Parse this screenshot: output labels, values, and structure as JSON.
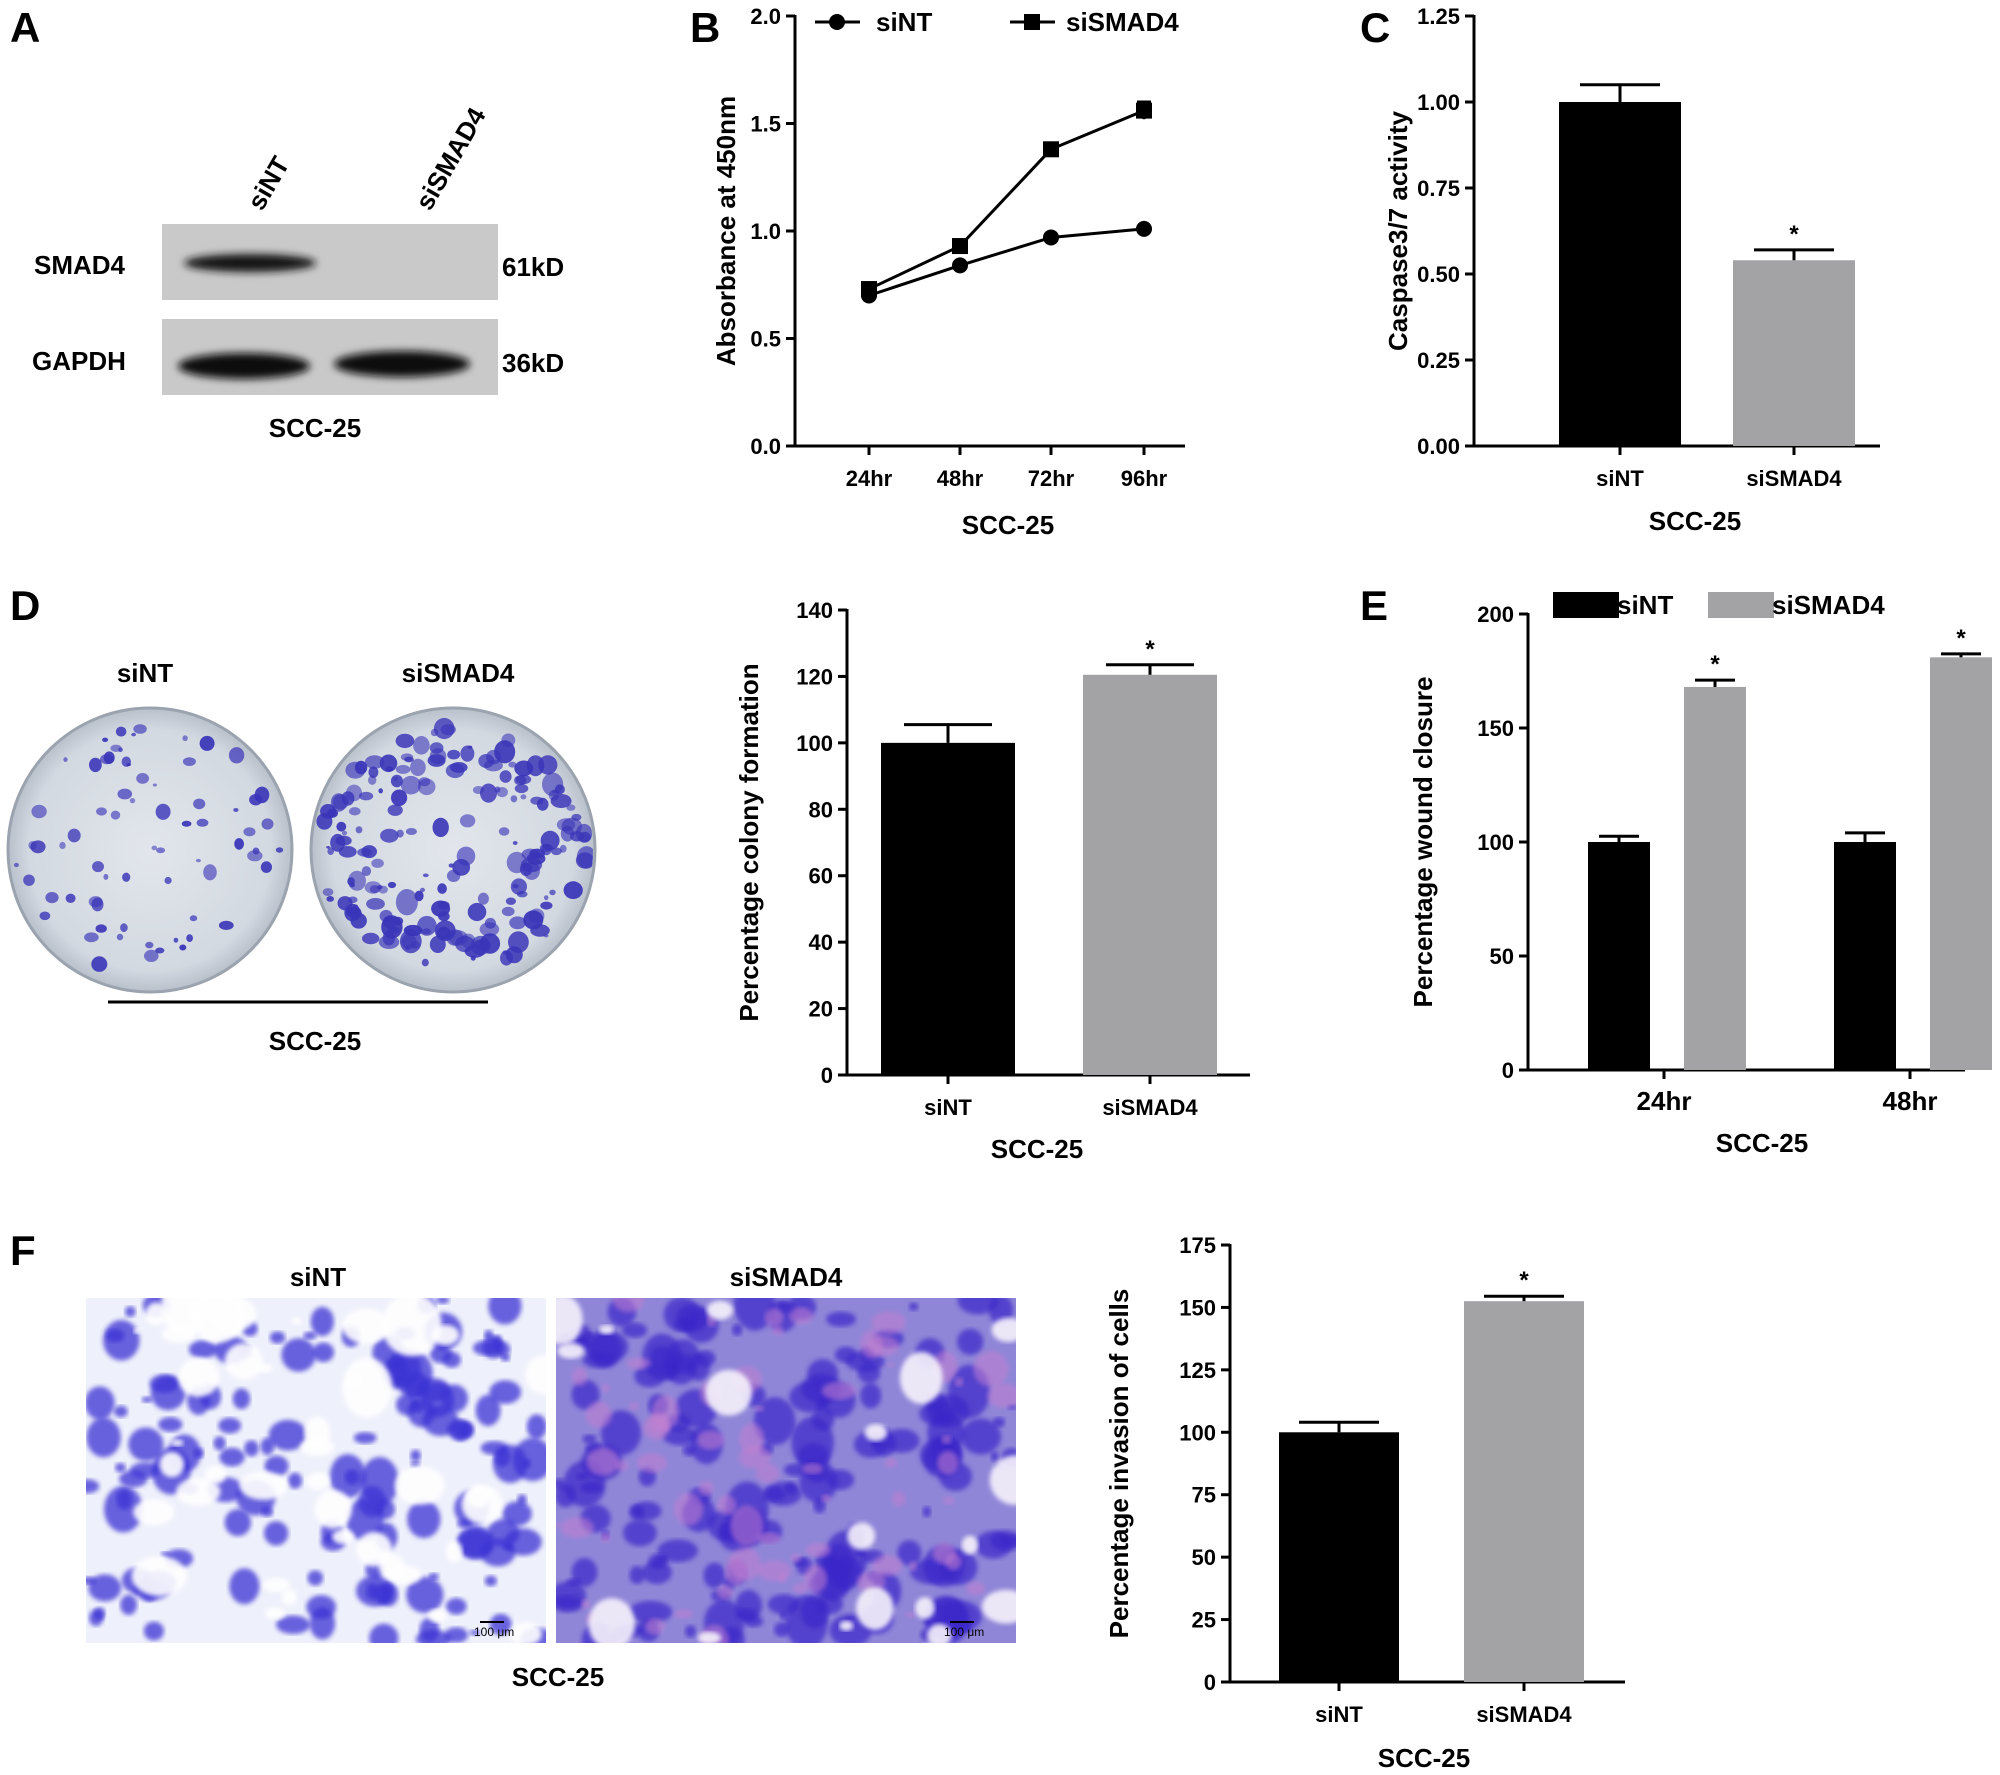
{
  "colors": {
    "siNT": "#000000",
    "siSMAD4": "#a3a3a6",
    "stain": "#3a35b8",
    "dish": "#cfd6de",
    "blot": "#c9c9c9"
  },
  "panel_letters": [
    "A",
    "B",
    "C",
    "D",
    "E",
    "F"
  ],
  "panel_a": {
    "lanes": [
      "siNT",
      "siSMAD4"
    ],
    "rows": [
      {
        "protein": "SMAD4",
        "size": "61kD"
      },
      {
        "protein": "GAPDH",
        "size": "36kD"
      }
    ],
    "cell_line": "SCC-25"
  },
  "panel_d": {
    "conditions": [
      "siNT",
      "siSMAD4"
    ],
    "cell_line": "SCC-25"
  },
  "panel_f": {
    "conditions": [
      "siNT",
      "siSMAD4"
    ],
    "scale_bar": "100 μm",
    "cell_line": "SCC-25"
  },
  "chart_data": [
    {
      "panel": "B",
      "type": "line",
      "x": [
        "24hr",
        "48hr",
        "72hr",
        "96hr"
      ],
      "series": [
        {
          "name": "siNT",
          "marker": "circle",
          "values": [
            0.7,
            0.84,
            0.97,
            1.01
          ],
          "errors": [
            0.01,
            0.01,
            0.01,
            0.01
          ]
        },
        {
          "name": "siSMAD4",
          "marker": "square",
          "values": [
            0.73,
            0.93,
            1.38,
            1.56
          ],
          "errors": [
            0.01,
            0.01,
            0.01,
            0.04
          ]
        }
      ],
      "xlabel": "SCC-25",
      "ylabel": "Absorbance at 450nm",
      "ylim": [
        0,
        2.0
      ],
      "yticks": [
        0.0,
        0.5,
        1.0,
        1.5,
        2.0
      ],
      "ytick_labels": [
        "0.0",
        "0.5",
        "1.0",
        "1.5",
        "2.0"
      ],
      "legend": "top",
      "grid": false
    },
    {
      "panel": "C",
      "type": "bar",
      "categories": [
        "siNT",
        "siSMAD4"
      ],
      "values": [
        1.0,
        0.54
      ],
      "errors": [
        0.05,
        0.03
      ],
      "significance": [
        "",
        "*"
      ],
      "xlabel": "SCC-25",
      "ylabel": "Caspase3/7 activity",
      "ylim": [
        0,
        1.25
      ],
      "yticks": [
        0.0,
        0.25,
        0.5,
        0.75,
        1.0,
        1.25
      ],
      "ytick_labels": [
        "0.00",
        "0.25",
        "0.50",
        "0.75",
        "1.00",
        "1.25"
      ],
      "grid": false
    },
    {
      "panel": "D",
      "type": "bar",
      "categories": [
        "siNT",
        "siSMAD4"
      ],
      "values": [
        100,
        120.5
      ],
      "errors": [
        5.5,
        3
      ],
      "significance": [
        "",
        "*"
      ],
      "xlabel": "SCC-25",
      "ylabel": "Percentage colony formation",
      "ylim": [
        0,
        140
      ],
      "yticks": [
        0,
        20,
        40,
        60,
        80,
        100,
        120,
        140
      ],
      "ytick_labels": [
        "0",
        "20",
        "40",
        "60",
        "80",
        "100",
        "120",
        "140"
      ],
      "grid": false
    },
    {
      "panel": "E",
      "type": "bar",
      "categories": [
        "24hr",
        "48hr"
      ],
      "series": [
        {
          "name": "siNT",
          "values": [
            100,
            100
          ],
          "errors": [
            2.5,
            4
          ],
          "significance": [
            "",
            ""
          ]
        },
        {
          "name": "siSMAD4",
          "values": [
            168,
            181
          ],
          "errors": [
            3,
            1.5
          ],
          "significance": [
            "*",
            "*"
          ]
        }
      ],
      "xlabel": "SCC-25",
      "ylabel": "Percentage wound closure",
      "ylim": [
        0,
        200
      ],
      "yticks": [
        0,
        50,
        100,
        150,
        200
      ],
      "ytick_labels": [
        "0",
        "50",
        "100",
        "150",
        "200"
      ],
      "legend": "top",
      "grid": false
    },
    {
      "panel": "F",
      "type": "bar",
      "categories": [
        "siNT",
        "siSMAD4"
      ],
      "values": [
        100,
        152.5
      ],
      "errors": [
        4,
        2
      ],
      "significance": [
        "",
        "*"
      ],
      "xlabel": "SCC-25",
      "ylabel": "Percentage invasion of cells",
      "ylim": [
        0,
        175
      ],
      "yticks": [
        0,
        25,
        50,
        75,
        100,
        125,
        150,
        175
      ],
      "ytick_labels": [
        "0",
        "25",
        "50",
        "75",
        "100",
        "125",
        "150",
        "175"
      ],
      "grid": false
    }
  ]
}
